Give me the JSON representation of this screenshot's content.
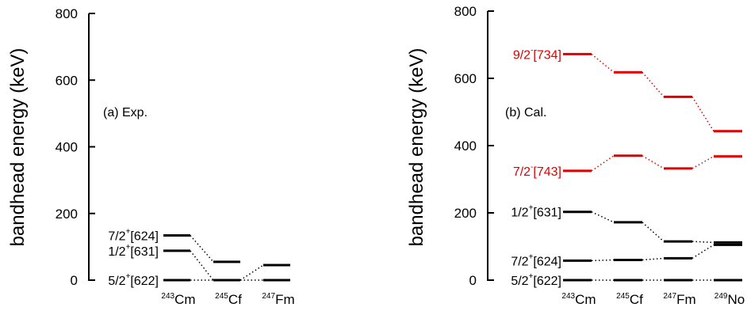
{
  "chart_data": [
    {
      "type": "level-scheme",
      "panel_label": "(a) Exp.",
      "ylabel": "bandhead energy (keV)",
      "ylim": [
        0,
        800
      ],
      "yticks": [
        "0",
        "200",
        "400",
        "600",
        "800"
      ],
      "categories": [
        {
          "mass": "243",
          "element": "Cm"
        },
        {
          "mass": "245",
          "element": "Cf"
        },
        {
          "mass": "247",
          "element": "Fm"
        }
      ],
      "series": [
        {
          "label": {
            "base": "5/2",
            "parity": "+",
            "asym": "[622]"
          },
          "color": "#000000",
          "values": [
            0,
            0,
            0
          ]
        },
        {
          "label": {
            "base": "1/2",
            "parity": "+",
            "asym": "[631]"
          },
          "color": "#000000",
          "values": [
            88,
            0,
            45
          ]
        },
        {
          "label": {
            "base": "7/2",
            "parity": "+",
            "asym": "[624]"
          },
          "color": "#000000",
          "values": [
            134,
            55,
            null
          ]
        }
      ]
    },
    {
      "type": "level-scheme",
      "panel_label": "(b) Cal.",
      "ylabel": "bandhead energy (keV)",
      "ylim": [
        0,
        800
      ],
      "yticks": [
        "0",
        "200",
        "400",
        "600",
        "800"
      ],
      "categories": [
        {
          "mass": "243",
          "element": "Cm"
        },
        {
          "mass": "245",
          "element": "Cf"
        },
        {
          "mass": "247",
          "element": "Fm"
        },
        {
          "mass": "249",
          "element": "No"
        }
      ],
      "series": [
        {
          "label": {
            "base": "5/2",
            "parity": "+",
            "asym": "[622]"
          },
          "color": "#000000",
          "values": [
            0,
            0,
            0,
            0
          ]
        },
        {
          "label": {
            "base": "7/2",
            "parity": "+",
            "asym": "[624]"
          },
          "color": "#000000",
          "values": [
            58,
            60,
            65,
            105
          ]
        },
        {
          "label": {
            "base": "1/2",
            "parity": "+",
            "asym": "[631]"
          },
          "color": "#000000",
          "values": [
            203,
            172,
            115,
            112
          ]
        },
        {
          "label": {
            "base": "7/2",
            "parity": "-",
            "asym": "[743]"
          },
          "color": "#e00000",
          "values": [
            325,
            370,
            332,
            368
          ]
        },
        {
          "label": {
            "base": "9/2",
            "parity": "-",
            "asym": "[734]"
          },
          "color": "#e00000",
          "values": [
            672,
            618,
            545,
            443
          ]
        }
      ]
    }
  ]
}
